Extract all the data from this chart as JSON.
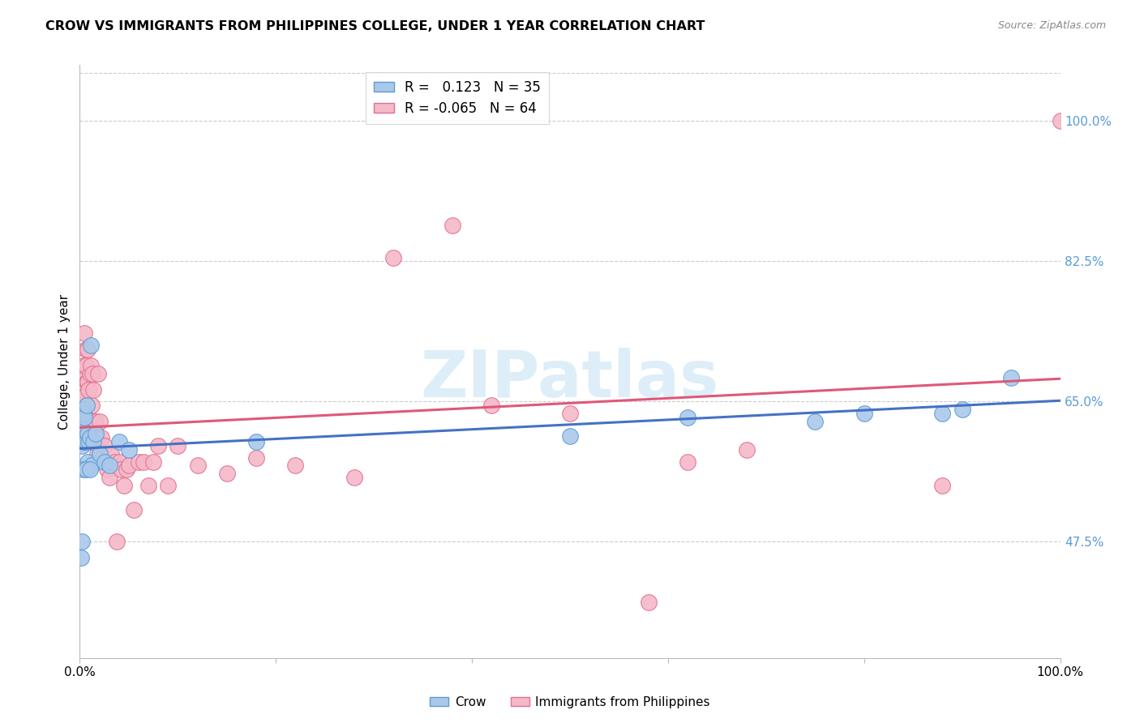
{
  "title": "CROW VS IMMIGRANTS FROM PHILIPPINES COLLEGE, UNDER 1 YEAR CORRELATION CHART",
  "source": "Source: ZipAtlas.com",
  "ylabel": "College, Under 1 year",
  "ytick_labels": [
    "47.5%",
    "65.0%",
    "82.5%",
    "100.0%"
  ],
  "ytick_vals": [
    0.475,
    0.65,
    0.825,
    1.0
  ],
  "crow_R": 0.123,
  "crow_N": 35,
  "phil_R": -0.065,
  "phil_N": 64,
  "crow_color": "#aac9ea",
  "crow_edge_color": "#5b9bd5",
  "crow_line_color": "#4472c4",
  "phil_color": "#f5b8c8",
  "phil_edge_color": "#e07090",
  "phil_line_color": "#e05878",
  "watermark_color": "#ddeef8",
  "background_color": "#ffffff",
  "grid_color": "#cccccc",
  "right_axis_color": "#5b9bd5",
  "ylim_low": 0.33,
  "ylim_high": 1.07,
  "crow_x": [
    0.001,
    0.002,
    0.003,
    0.003,
    0.004,
    0.004,
    0.005,
    0.005,
    0.006,
    0.007,
    0.008,
    0.008,
    0.009,
    0.01,
    0.011,
    0.012,
    0.014,
    0.016,
    0.02,
    0.025,
    0.03,
    0.04,
    0.05,
    0.75,
    0.8,
    0.88,
    0.9,
    0.95,
    0.002,
    0.004,
    0.006,
    0.01,
    0.18,
    0.5,
    0.62
  ],
  "crow_y": [
    0.455,
    0.595,
    0.615,
    0.64,
    0.6,
    0.635,
    0.605,
    0.63,
    0.6,
    0.645,
    0.61,
    0.575,
    0.6,
    0.605,
    0.72,
    0.57,
    0.6,
    0.61,
    0.585,
    0.575,
    0.57,
    0.6,
    0.59,
    0.625,
    0.635,
    0.635,
    0.64,
    0.68,
    0.475,
    0.565,
    0.565,
    0.565,
    0.6,
    0.607,
    0.63
  ],
  "phil_x": [
    0.001,
    0.001,
    0.002,
    0.002,
    0.003,
    0.003,
    0.004,
    0.004,
    0.005,
    0.005,
    0.006,
    0.006,
    0.007,
    0.007,
    0.008,
    0.008,
    0.009,
    0.009,
    0.01,
    0.01,
    0.011,
    0.012,
    0.013,
    0.014,
    0.015,
    0.016,
    0.017,
    0.018,
    0.019,
    0.02,
    0.022,
    0.025,
    0.028,
    0.03,
    0.032,
    0.035,
    0.038,
    0.04,
    0.042,
    0.045,
    0.048,
    0.05,
    0.055,
    0.06,
    0.065,
    0.07,
    0.075,
    0.08,
    0.09,
    0.1,
    0.12,
    0.15,
    0.18,
    0.22,
    0.28,
    0.32,
    0.38,
    0.42,
    0.5,
    0.58,
    0.62,
    0.68,
    0.88,
    1.0
  ],
  "phil_y": [
    0.645,
    0.67,
    0.655,
    0.685,
    0.635,
    0.655,
    0.695,
    0.635,
    0.605,
    0.735,
    0.695,
    0.715,
    0.675,
    0.645,
    0.715,
    0.675,
    0.665,
    0.62,
    0.685,
    0.625,
    0.695,
    0.645,
    0.685,
    0.665,
    0.625,
    0.625,
    0.605,
    0.585,
    0.685,
    0.625,
    0.605,
    0.595,
    0.565,
    0.555,
    0.585,
    0.575,
    0.475,
    0.575,
    0.565,
    0.545,
    0.565,
    0.57,
    0.515,
    0.575,
    0.575,
    0.545,
    0.575,
    0.595,
    0.545,
    0.595,
    0.57,
    0.56,
    0.58,
    0.57,
    0.555,
    0.83,
    0.87,
    0.645,
    0.635,
    0.4,
    0.575,
    0.59,
    0.545,
    1.0
  ]
}
